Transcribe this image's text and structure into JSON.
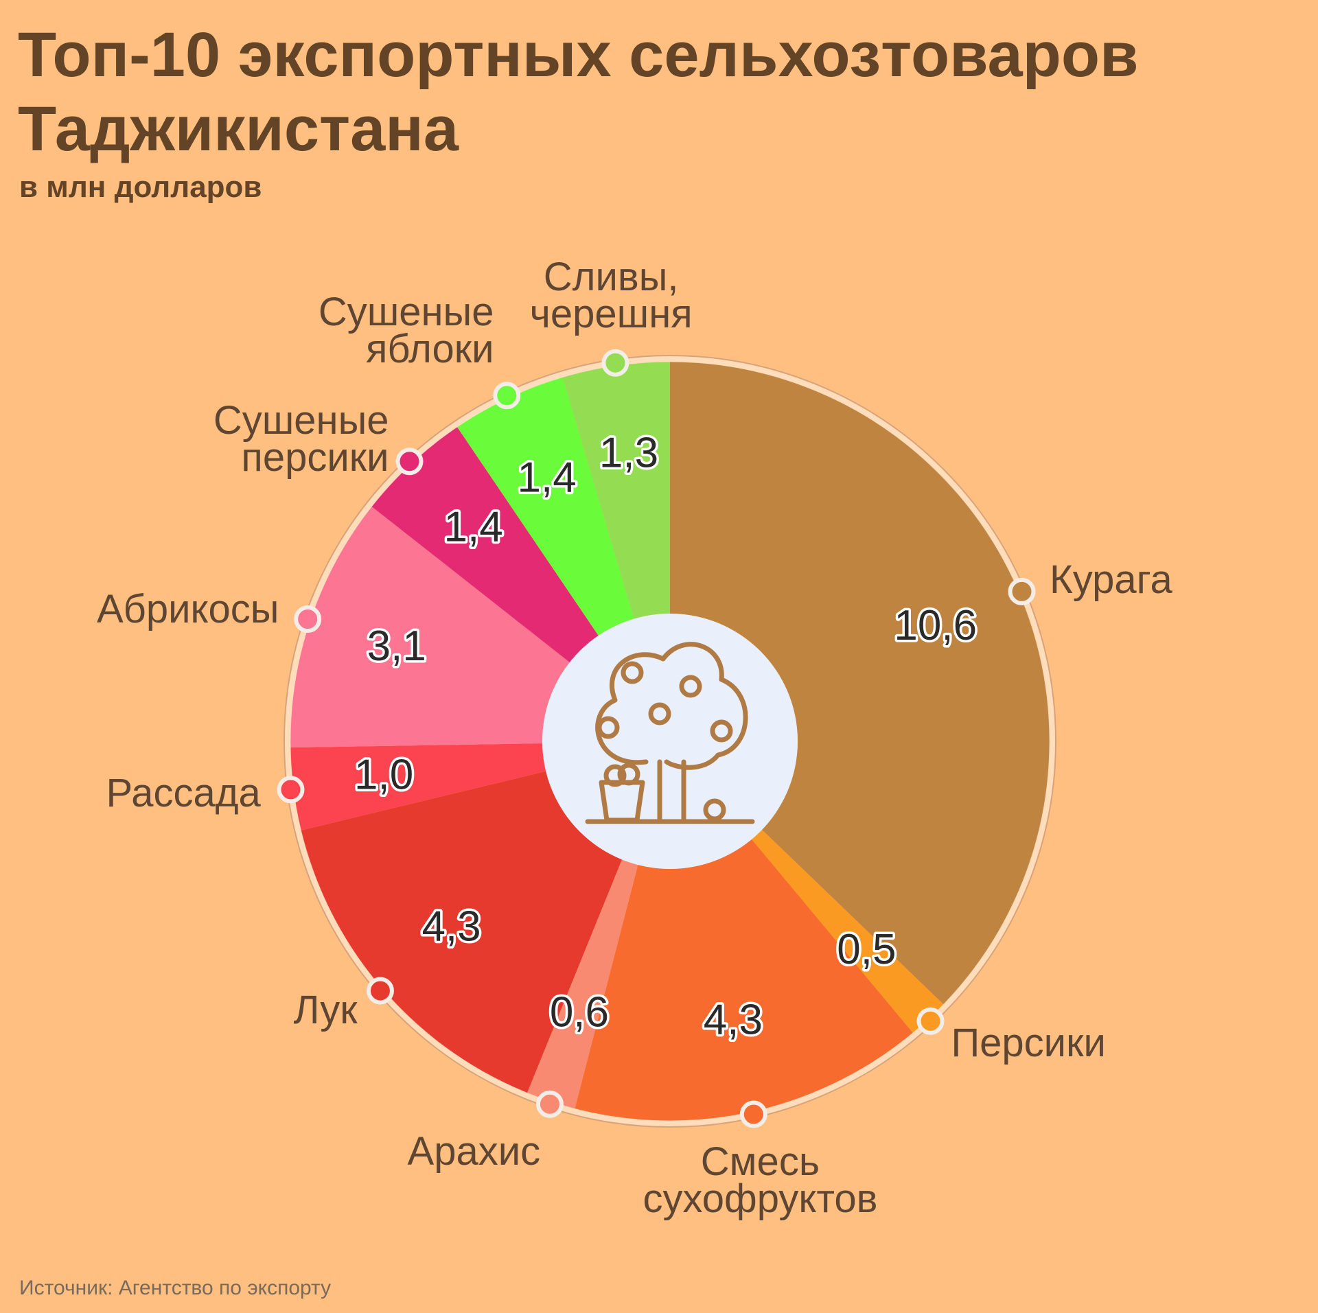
{
  "chart_data": {
    "type": "pie",
    "title": "Топ-10 экспортных сельхозтоваров Таджикистана",
    "subtitle": "в млн долларов",
    "source": "Источник: Агентство по экспорту",
    "categories": [
      "Курага",
      "Персики",
      "Смесь сухофруктов",
      "Арахис",
      "Лук",
      "Рассада",
      "Абрикосы",
      "Сушеные персики",
      "Сушеные яблоки",
      "Сливы, черешня"
    ],
    "values": [
      10.6,
      0.5,
      4.3,
      0.6,
      4.3,
      1.0,
      3.1,
      1.4,
      1.4,
      1.3
    ],
    "value_labels": [
      "10,6",
      "0,5",
      "4,3",
      "0,6",
      "4,3",
      "1,0",
      "3,1",
      "1,4",
      "1,4",
      "1,3"
    ],
    "colors": [
      "#c08441",
      "#fb9a22",
      "#f86b2e",
      "#f98a72",
      "#e63a2f",
      "#fc4450",
      "#fc7592",
      "#e32a72",
      "#6afc3a",
      "#94dc52"
    ]
  }
}
